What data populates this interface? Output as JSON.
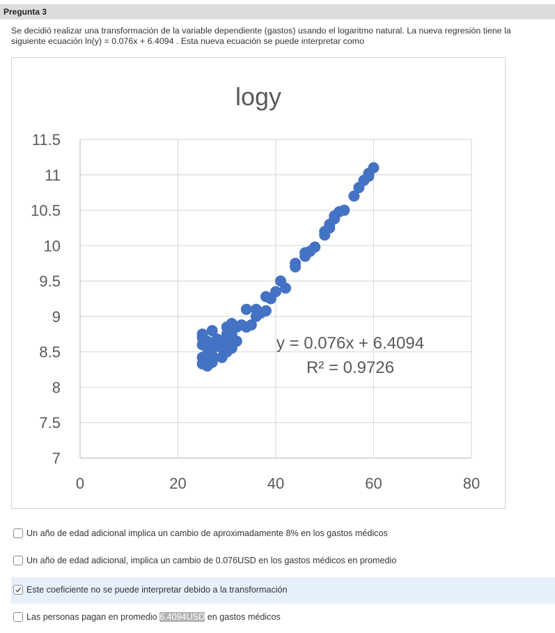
{
  "question": {
    "title": "Pregunta 3",
    "prompt": "Se decidió realizar una transformación de la variable dependiente (gastos) usando el logaritmo natural. La nueva regresión tiene la siguiente ecuación ln(y) = 0.076x + 6.4094 . Esta nueva ecuación se puede interpretar como"
  },
  "chart_data": {
    "type": "scatter",
    "title": "logy",
    "xlabel": "",
    "ylabel": "",
    "xlim": [
      0,
      80
    ],
    "ylim": [
      7,
      11.5
    ],
    "x_ticks": [
      "0",
      "20",
      "40",
      "60",
      "80"
    ],
    "y_ticks": [
      "7",
      "7.5",
      "8",
      "8.5",
      "9",
      "9.5",
      "10",
      "10.5",
      "11",
      "11.5"
    ],
    "grid": true,
    "marker_color": "#4472c4",
    "trendline_equation": "y = 0.076x + 6.4094",
    "r_squared": "R² = 0.9726",
    "points": [
      [
        25,
        8.75
      ],
      [
        25,
        8.7
      ],
      [
        25,
        8.6
      ],
      [
        25,
        8.42
      ],
      [
        25,
        8.33
      ],
      [
        26,
        8.3
      ],
      [
        26,
        8.35
      ],
      [
        26,
        8.55
      ],
      [
        26,
        8.65
      ],
      [
        27,
        8.8
      ],
      [
        27,
        8.6
      ],
      [
        27,
        8.45
      ],
      [
        27,
        8.35
      ],
      [
        28,
        8.68
      ],
      [
        28,
        8.62
      ],
      [
        28,
        8.58
      ],
      [
        29,
        8.42
      ],
      [
        29,
        8.55
      ],
      [
        29,
        8.6
      ],
      [
        30,
        8.85
      ],
      [
        30,
        8.5
      ],
      [
        30,
        8.65
      ],
      [
        30,
        8.75
      ],
      [
        31,
        8.9
      ],
      [
        31,
        8.55
      ],
      [
        31,
        8.75
      ],
      [
        32,
        8.85
      ],
      [
        32,
        8.65
      ],
      [
        33,
        8.88
      ],
      [
        34,
        9.1
      ],
      [
        34,
        8.85
      ],
      [
        35,
        8.88
      ],
      [
        36,
        9.0
      ],
      [
        36,
        9.1
      ],
      [
        37,
        9.05
      ],
      [
        38,
        9.08
      ],
      [
        38,
        9.28
      ],
      [
        39,
        9.25
      ],
      [
        40,
        9.35
      ],
      [
        41,
        9.5
      ],
      [
        42,
        9.4
      ],
      [
        44,
        9.7
      ],
      [
        44,
        9.75
      ],
      [
        46,
        9.85
      ],
      [
        46,
        9.9
      ],
      [
        47,
        9.92
      ],
      [
        48,
        9.98
      ],
      [
        50,
        10.15
      ],
      [
        50,
        10.2
      ],
      [
        51,
        10.25
      ],
      [
        51,
        10.3
      ],
      [
        52,
        10.38
      ],
      [
        52,
        10.42
      ],
      [
        53,
        10.48
      ],
      [
        54,
        10.5
      ],
      [
        56,
        10.7
      ],
      [
        57,
        10.82
      ],
      [
        58,
        10.92
      ],
      [
        59,
        10.98
      ],
      [
        59,
        11.02
      ],
      [
        60,
        11.1
      ]
    ]
  },
  "options": [
    {
      "pre": "Un año de edad adicional implica un cambio de aproximadamente 8% en los gastos médicos",
      "hl": "",
      "post": "",
      "checked": false
    },
    {
      "pre": "Un año de edad adicional, implica un cambio de 0.076USD en los gastos médicos en promedio",
      "hl": "",
      "post": "",
      "checked": false
    },
    {
      "pre": "Este coeficiente no se puede interpretar debido a la transformación",
      "hl": "",
      "post": "",
      "checked": true
    },
    {
      "pre": "Las personas pagan en promedio ",
      "hl": "6.4094USD",
      "post": " en gastos médicos",
      "checked": false
    }
  ]
}
